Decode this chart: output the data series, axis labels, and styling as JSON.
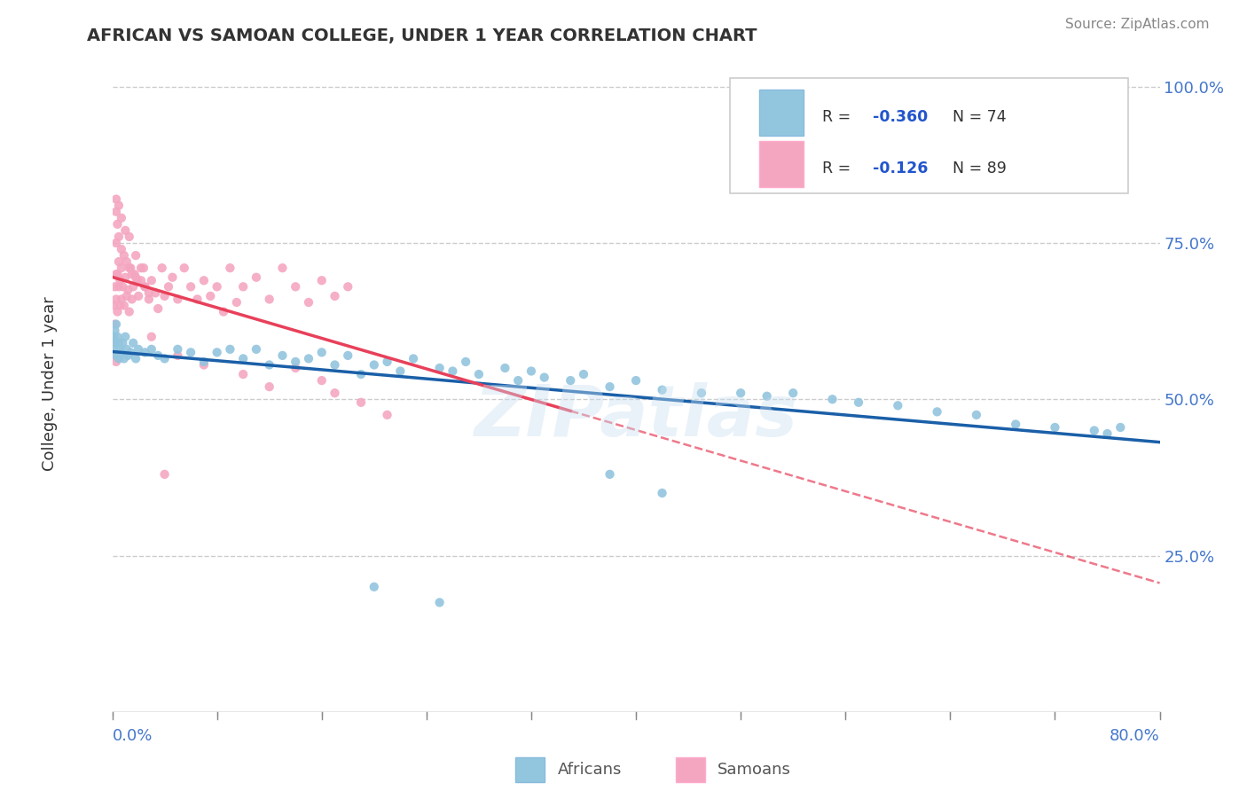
{
  "title": "AFRICAN VS SAMOAN COLLEGE, UNDER 1 YEAR CORRELATION CHART",
  "source_text": "Source: ZipAtlas.com",
  "ylabel": "College, Under 1 year",
  "ytick_vals": [
    0.25,
    0.5,
    0.75,
    1.0
  ],
  "r_african": -0.36,
  "n_african": 74,
  "r_samoan": -0.126,
  "n_samoan": 89,
  "color_african": "#92c5de",
  "color_samoan": "#f4a6c0",
  "trend_african": "#1a5fa8",
  "trend_samoan": "#e8405a",
  "trend_samoan_dash": "#e8405a",
  "watermark": "ZIPatlas",
  "xmin": 0.0,
  "xmax": 0.8,
  "ymin": 0.0,
  "ymax": 1.05,
  "african_x": [
    0.001,
    0.001,
    0.002,
    0.002,
    0.003,
    0.003,
    0.004,
    0.005,
    0.005,
    0.006,
    0.007,
    0.008,
    0.009,
    0.01,
    0.011,
    0.012,
    0.014,
    0.016,
    0.018,
    0.02,
    0.025,
    0.03,
    0.035,
    0.04,
    0.05,
    0.06,
    0.07,
    0.08,
    0.09,
    0.1,
    0.11,
    0.12,
    0.13,
    0.14,
    0.15,
    0.16,
    0.17,
    0.18,
    0.19,
    0.2,
    0.21,
    0.22,
    0.23,
    0.25,
    0.26,
    0.27,
    0.28,
    0.3,
    0.31,
    0.32,
    0.33,
    0.35,
    0.36,
    0.38,
    0.4,
    0.42,
    0.45,
    0.48,
    0.5,
    0.52,
    0.55,
    0.57,
    0.6,
    0.63,
    0.66,
    0.69,
    0.72,
    0.75,
    0.76,
    0.77,
    0.38,
    0.42,
    0.2,
    0.25
  ],
  "african_y": [
    0.6,
    0.58,
    0.61,
    0.59,
    0.62,
    0.57,
    0.6,
    0.59,
    0.565,
    0.58,
    0.575,
    0.59,
    0.565,
    0.6,
    0.58,
    0.57,
    0.575,
    0.59,
    0.565,
    0.58,
    0.575,
    0.58,
    0.57,
    0.565,
    0.58,
    0.575,
    0.56,
    0.575,
    0.58,
    0.565,
    0.58,
    0.555,
    0.57,
    0.56,
    0.565,
    0.575,
    0.555,
    0.57,
    0.54,
    0.555,
    0.56,
    0.545,
    0.565,
    0.55,
    0.545,
    0.56,
    0.54,
    0.55,
    0.53,
    0.545,
    0.535,
    0.53,
    0.54,
    0.52,
    0.53,
    0.515,
    0.51,
    0.51,
    0.505,
    0.51,
    0.5,
    0.495,
    0.49,
    0.48,
    0.475,
    0.46,
    0.455,
    0.45,
    0.445,
    0.455,
    0.38,
    0.35,
    0.2,
    0.175
  ],
  "samoan_x": [
    0.001,
    0.001,
    0.002,
    0.002,
    0.003,
    0.003,
    0.003,
    0.004,
    0.004,
    0.005,
    0.005,
    0.006,
    0.006,
    0.007,
    0.007,
    0.008,
    0.009,
    0.01,
    0.011,
    0.012,
    0.013,
    0.014,
    0.015,
    0.016,
    0.018,
    0.02,
    0.022,
    0.025,
    0.028,
    0.03,
    0.033,
    0.035,
    0.038,
    0.04,
    0.043,
    0.046,
    0.05,
    0.055,
    0.06,
    0.065,
    0.07,
    0.075,
    0.08,
    0.085,
    0.09,
    0.095,
    0.1,
    0.11,
    0.12,
    0.13,
    0.14,
    0.15,
    0.16,
    0.17,
    0.18,
    0.003,
    0.004,
    0.005,
    0.007,
    0.009,
    0.011,
    0.013,
    0.015,
    0.017,
    0.019,
    0.022,
    0.025,
    0.028,
    0.003,
    0.005,
    0.007,
    0.01,
    0.013,
    0.018,
    0.024,
    0.001,
    0.002,
    0.003,
    0.14,
    0.16,
    0.03,
    0.05,
    0.07,
    0.1,
    0.12,
    0.17,
    0.19,
    0.21,
    0.04
  ],
  "samoan_y": [
    0.6,
    0.65,
    0.68,
    0.62,
    0.75,
    0.7,
    0.66,
    0.7,
    0.64,
    0.68,
    0.72,
    0.65,
    0.69,
    0.66,
    0.71,
    0.68,
    0.65,
    0.695,
    0.665,
    0.675,
    0.64,
    0.71,
    0.66,
    0.68,
    0.695,
    0.665,
    0.71,
    0.68,
    0.66,
    0.69,
    0.67,
    0.645,
    0.71,
    0.665,
    0.68,
    0.695,
    0.66,
    0.71,
    0.68,
    0.66,
    0.69,
    0.665,
    0.68,
    0.64,
    0.71,
    0.655,
    0.68,
    0.695,
    0.66,
    0.71,
    0.68,
    0.655,
    0.69,
    0.665,
    0.68,
    0.8,
    0.78,
    0.76,
    0.74,
    0.73,
    0.72,
    0.71,
    0.7,
    0.7,
    0.69,
    0.69,
    0.68,
    0.67,
    0.82,
    0.81,
    0.79,
    0.77,
    0.76,
    0.73,
    0.71,
    0.59,
    0.57,
    0.56,
    0.55,
    0.53,
    0.6,
    0.57,
    0.555,
    0.54,
    0.52,
    0.51,
    0.495,
    0.475,
    0.38
  ]
}
